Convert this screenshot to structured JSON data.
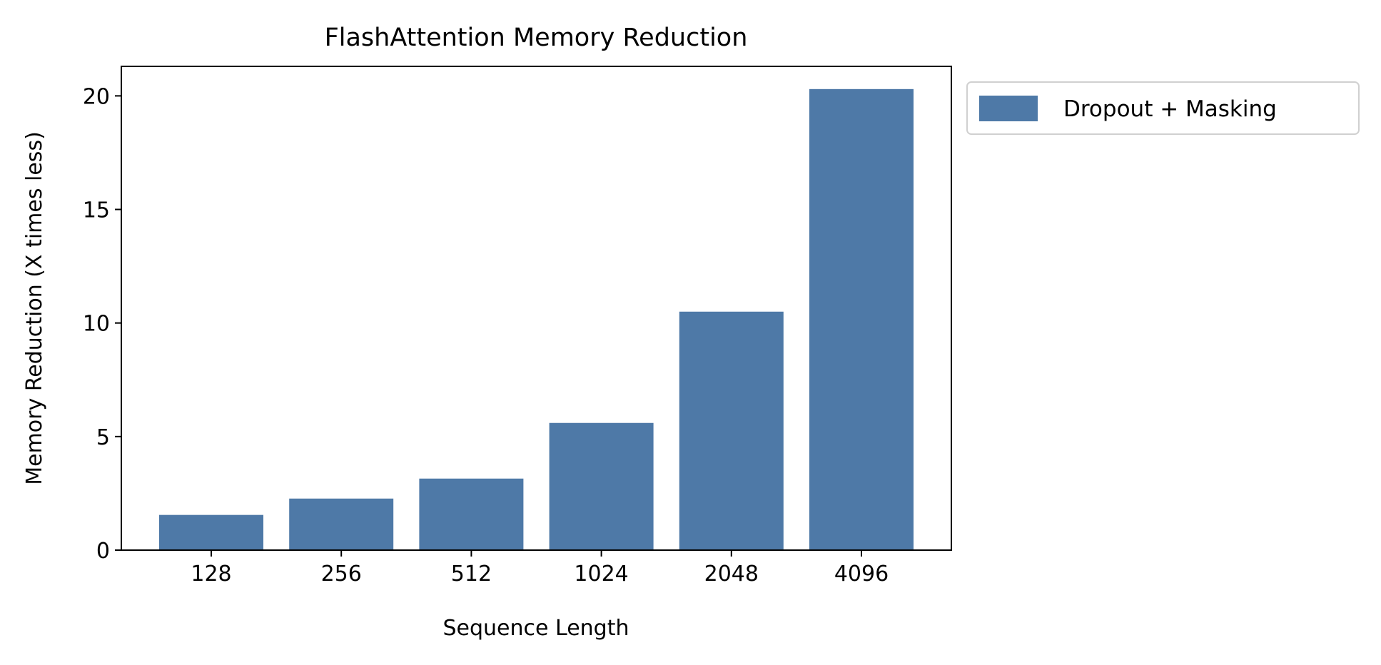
{
  "chart_data": {
    "type": "bar",
    "title": "FlashAttention Memory Reduction",
    "xlabel": "Sequence Length",
    "ylabel": "Memory Reduction (X times less)",
    "categories": [
      "128",
      "256",
      "512",
      "1024",
      "2048",
      "4096"
    ],
    "series": [
      {
        "name": "Dropout + Masking",
        "values": [
          1.55,
          2.27,
          3.15,
          5.6,
          10.5,
          20.3
        ],
        "color": "#4e79a7"
      }
    ],
    "ylim": [
      0,
      21.3
    ],
    "yticks": [
      0,
      5,
      10,
      15,
      20
    ],
    "grid": false,
    "legend_position": "outside-top-right"
  }
}
